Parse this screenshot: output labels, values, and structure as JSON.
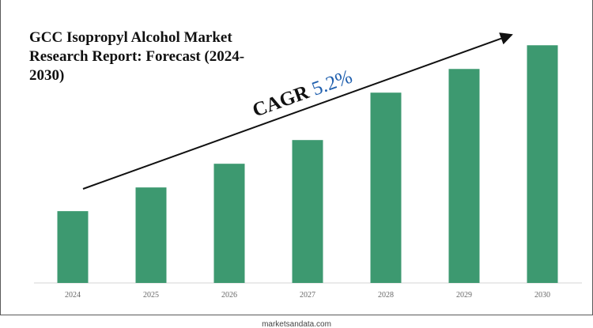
{
  "chart_data": {
    "type": "bar",
    "title": "GCC Isopropyl Alcohol Market Research Report: Forecast (2024-2030)",
    "categories": [
      "2024",
      "2025",
      "2026",
      "2027",
      "2028",
      "2029",
      "2030"
    ],
    "values": [
      1.0,
      1.33,
      1.66,
      1.99,
      2.65,
      2.98,
      3.31
    ],
    "ylim": [
      0,
      3.5
    ],
    "grid": false,
    "legend": "none",
    "bar_color": "#3d9970",
    "annotation": {
      "label": "CAGR",
      "value": "5.2%",
      "label_color": "#111111",
      "value_color": "#1f5fae"
    }
  },
  "footer": {
    "text": "marketsandata.com"
  }
}
